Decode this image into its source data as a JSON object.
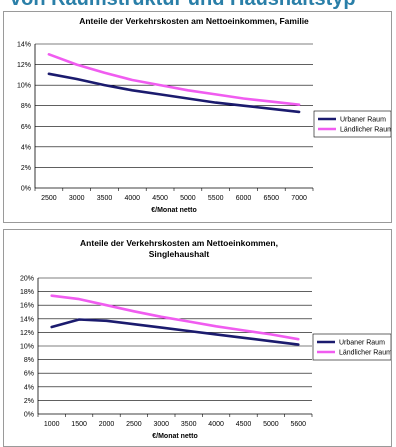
{
  "header": {
    "title": "von Raumstruktur und Haushaltstyp"
  },
  "colors": {
    "urban": "#1b1b6e",
    "rural": "#f05cf0",
    "grid": "#000000"
  },
  "chart_data": [
    {
      "type": "line",
      "title_lines": [
        "Anteile der Verkehrskosten am Nettoeinkommen, Familie"
      ],
      "xlabel": "€/Monat netto",
      "ylabel": "",
      "x": [
        2500,
        3000,
        3500,
        4000,
        4500,
        5000,
        5500,
        6000,
        6500,
        7000
      ],
      "ylim": [
        0,
        14
      ],
      "yticks": [
        0,
        2,
        4,
        6,
        8,
        10,
        12,
        14
      ],
      "ytick_labels": [
        "0%",
        "2%",
        "4%",
        "6%",
        "8%",
        "10%",
        "12%",
        "14%"
      ],
      "grid": true,
      "legend": "right",
      "series": [
        {
          "name": "Urbaner  Raum",
          "color": "#1b1b6e",
          "values": [
            11.1,
            10.6,
            10.0,
            9.5,
            9.1,
            8.7,
            8.3,
            8.0,
            7.7,
            7.4
          ]
        },
        {
          "name": "Ländlicher Raum",
          "color": "#f05cf0",
          "values": [
            13.0,
            12.0,
            11.2,
            10.5,
            10.0,
            9.5,
            9.1,
            8.7,
            8.4,
            8.1
          ]
        }
      ]
    },
    {
      "type": "line",
      "title_lines": [
        "Anteile der Verkehrskosten am Nettoeinkommen,",
        "Singlehaushalt"
      ],
      "xlabel": "€/Monat netto",
      "ylabel": "",
      "x": [
        1000,
        1500,
        2000,
        2500,
        3000,
        3500,
        4000,
        4500,
        5000,
        5600
      ],
      "ylim": [
        0,
        20
      ],
      "yticks": [
        0,
        2,
        4,
        6,
        8,
        10,
        12,
        14,
        16,
        18,
        20
      ],
      "ytick_labels": [
        "0%",
        "2%",
        "4%",
        "6%",
        "8%",
        "10%",
        "12%",
        "14%",
        "16%",
        "18%",
        "20%"
      ],
      "grid": true,
      "legend": "right",
      "series": [
        {
          "name": "Urbaner  Raum",
          "color": "#1b1b6e",
          "values": [
            12.8,
            13.9,
            13.7,
            13.2,
            12.7,
            12.2,
            11.7,
            11.2,
            10.7,
            10.2
          ]
        },
        {
          "name": "Ländlicher Raum",
          "color": "#f05cf0",
          "values": [
            17.4,
            16.9,
            16.0,
            15.1,
            14.3,
            13.6,
            12.9,
            12.3,
            11.7,
            11.0
          ]
        }
      ]
    }
  ]
}
